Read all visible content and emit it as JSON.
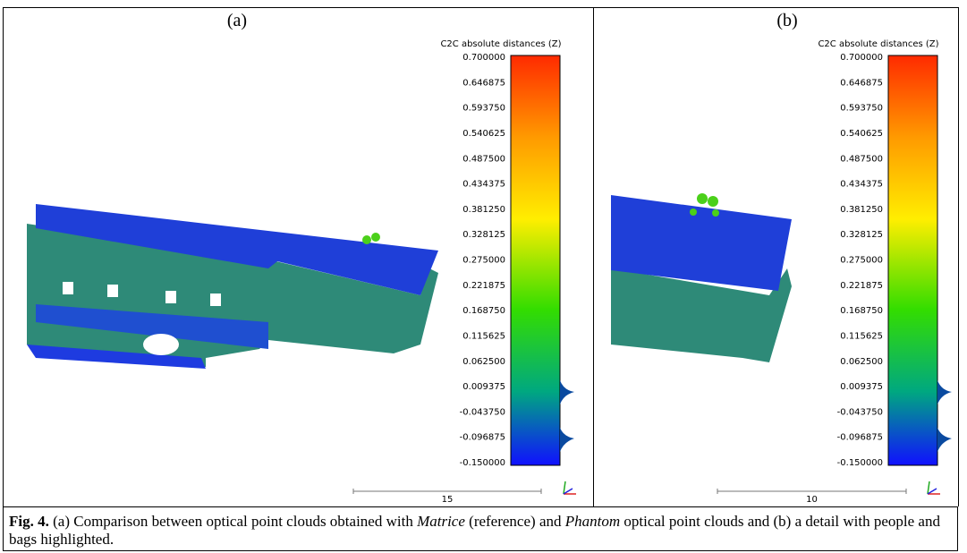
{
  "panels": [
    {
      "label": "(a)",
      "scale_title": "C2C absolute distances (Z)",
      "scale_ticks": [
        "0.700000",
        "0.646875",
        "0.593750",
        "0.540625",
        "0.487500",
        "0.434375",
        "0.381250",
        "0.328125",
        "0.275000",
        "0.221875",
        "0.168750",
        "0.115625",
        "0.062500",
        "0.009375",
        "-0.043750",
        "-0.096875",
        "-0.150000"
      ],
      "scale_bar_label": "15"
    },
    {
      "label": "(b)",
      "scale_title": "C2C absolute distances (Z)",
      "scale_ticks": [
        "0.700000",
        "0.646875",
        "0.593750",
        "0.540625",
        "0.487500",
        "0.434375",
        "0.381250",
        "0.328125",
        "0.275000",
        "0.221875",
        "0.168750",
        "0.115625",
        "0.062500",
        "0.009375",
        "-0.043750",
        "-0.096875",
        "-0.150000"
      ],
      "scale_bar_label": "10"
    }
  ],
  "caption": {
    "label": "Fig. 4.",
    "parts": [
      {
        "text": " (a) Comparison between optical point clouds obtained with ",
        "italic": false
      },
      {
        "text": "Matrice",
        "italic": true
      },
      {
        "text": " (reference) and ",
        "italic": false
      },
      {
        "text": "Phantom",
        "italic": true
      },
      {
        "text": " optical point clouds and (b) a detail with people and bags highlighted.",
        "italic": false
      }
    ]
  }
}
